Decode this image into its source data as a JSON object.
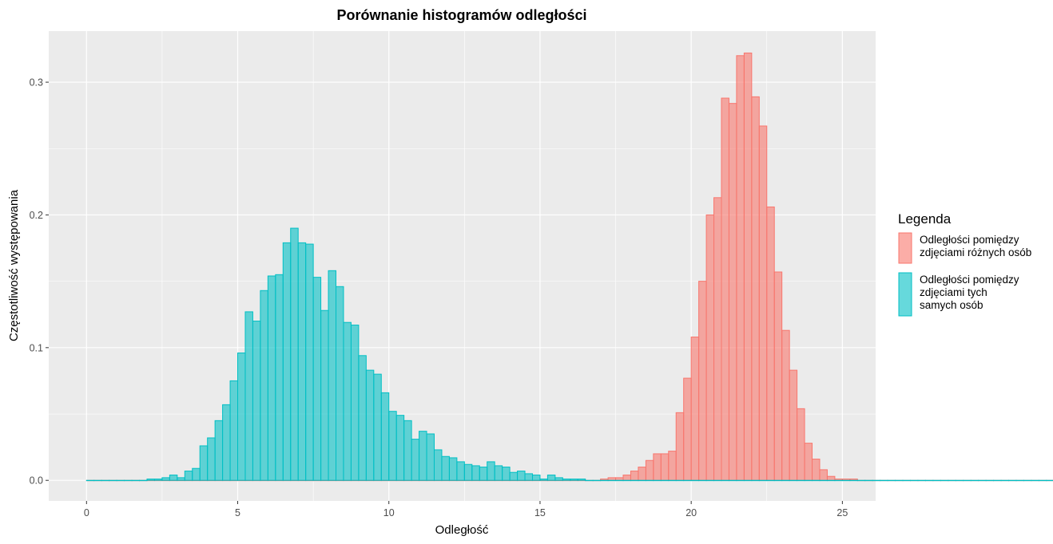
{
  "chart_data": {
    "type": "bar",
    "title": "Porównanie histogramów odległości",
    "xlabel": "Odległość",
    "ylabel": "Częstotliwość występowania",
    "xlim": [
      -1.25,
      26.1
    ],
    "ylim": [
      -0.0155,
      0.3385
    ],
    "xticks": [
      0,
      5,
      10,
      15,
      20,
      25
    ],
    "xtick_labels": [
      "0",
      "5",
      "10",
      "15",
      "20",
      "25"
    ],
    "yticks": [
      0.0,
      0.1,
      0.2,
      0.3
    ],
    "ytick_labels": [
      "0.0",
      "0.1",
      "0.2",
      "0.3"
    ],
    "grid": true,
    "bin_start": 0.0,
    "bin_width": 0.25,
    "legend": {
      "title": "Legenda",
      "position": "right"
    },
    "series": [
      {
        "name": "Odległości pomiędzy zdjęciami różnych osób",
        "label_lines": [
          "Odległości pomiędzy",
          "zdjęciami różnych osób"
        ],
        "fill": "#F8766D",
        "values": [
          0,
          0,
          0,
          0,
          0,
          0,
          0,
          0,
          0,
          0,
          0,
          0,
          0,
          0,
          0,
          0,
          0,
          0,
          0,
          0,
          0,
          0,
          0,
          0,
          0,
          0,
          0,
          0,
          0,
          0,
          0,
          0,
          0,
          0,
          0,
          0,
          0,
          0,
          0,
          0,
          0,
          0,
          0,
          0,
          0,
          0,
          0,
          0,
          0,
          0,
          0,
          0,
          0,
          0,
          0,
          0,
          0,
          0,
          0,
          0,
          0,
          0,
          0,
          0,
          0,
          0,
          0,
          0,
          0.001,
          0.002,
          0.002,
          0.004,
          0.007,
          0.01,
          0.015,
          0.02,
          0.02,
          0.022,
          0.051,
          0.077,
          0.108,
          0.15,
          0.2,
          0.213,
          0.288,
          0.284,
          0.32,
          0.322,
          0.289,
          0.267,
          0.206,
          0.157,
          0.113,
          0.083,
          0.054,
          0.028,
          0.016,
          0.008,
          0.003,
          0.001,
          0.001,
          0.001,
          0,
          0,
          0,
          0,
          0,
          0,
          0,
          0,
          0,
          0,
          0,
          0,
          0,
          0,
          0,
          0,
          0,
          0,
          0,
          0,
          0,
          0,
          0,
          0,
          0,
          0,
          0,
          0,
          0,
          0,
          0,
          0,
          0,
          0,
          0,
          0
        ]
      },
      {
        "name": "Odległości pomiędzy zdjęciami tych samych osób",
        "label_lines": [
          "Odległości pomiędzy",
          "zdjęciami tych",
          "samych osób"
        ],
        "fill": "#00BFC4",
        "values": [
          0,
          0,
          0,
          0,
          0,
          0,
          0,
          0,
          0.001,
          0.001,
          0.002,
          0.004,
          0.002,
          0.007,
          0.009,
          0.026,
          0.032,
          0.045,
          0.057,
          0.075,
          0.096,
          0.127,
          0.12,
          0.143,
          0.154,
          0.155,
          0.179,
          0.19,
          0.179,
          0.178,
          0.153,
          0.128,
          0.158,
          0.146,
          0.119,
          0.117,
          0.094,
          0.083,
          0.08,
          0.066,
          0.052,
          0.049,
          0.045,
          0.031,
          0.037,
          0.035,
          0.023,
          0.018,
          0.017,
          0.014,
          0.012,
          0.011,
          0.01,
          0.014,
          0.011,
          0.01,
          0.006,
          0.007,
          0.005,
          0.004,
          0.001,
          0.004,
          0.002,
          0.001,
          0.001,
          0.001,
          0,
          0,
          0,
          0,
          0,
          0,
          0,
          0,
          0,
          0,
          0,
          0,
          0,
          0,
          0,
          0,
          0,
          0,
          0,
          0,
          0,
          0,
          0,
          0,
          0,
          0,
          0,
          0,
          0,
          0,
          0,
          0,
          0,
          0,
          0,
          0,
          0,
          0,
          0,
          0,
          0,
          0,
          0,
          0,
          0,
          0,
          0,
          0,
          0,
          0,
          0,
          0,
          0,
          0,
          0,
          0,
          0,
          0,
          0,
          0,
          0,
          0,
          0,
          0,
          0,
          0,
          0,
          0,
          0,
          0,
          0,
          0,
          0,
          0,
          0,
          0,
          0,
          0,
          0
        ]
      }
    ]
  }
}
